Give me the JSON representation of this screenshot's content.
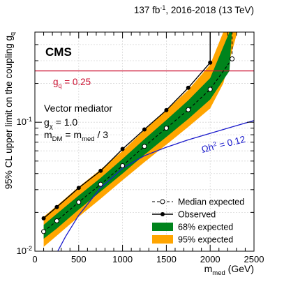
{
  "chart_data": {
    "type": "line",
    "header": {
      "experiment": "CMS",
      "luminosity": "137 fb",
      "luminosity_sup": "-1",
      "run_info": ", 2016-2018 (13 TeV)"
    },
    "model_text": {
      "line1": "Vector mediator",
      "line2_main": "g",
      "line2_sub": "χ",
      "line2_rest": " = 1.0",
      "line3_main": "m",
      "line3_sub1": "DM",
      "line3_mid": " = m",
      "line3_sub2": "med",
      "line3_rest": " / 3"
    },
    "xlabel": {
      "main": "m",
      "sub": "med",
      "rest": " (GeV)"
    },
    "ylabel": {
      "main": "95% CL upper limit on the coupling g",
      "sub": "q"
    },
    "xlim": [
      0,
      2500
    ],
    "ylim": [
      0.01,
      0.5
    ],
    "ylog": true,
    "x_ticks": [
      0,
      500,
      1000,
      1500,
      2000,
      2500
    ],
    "x_tick_labels": [
      "0",
      "500",
      "1000",
      "1500",
      "2000",
      "2500"
    ],
    "y_ticks_major": [
      0.01,
      0.1
    ],
    "y_tick_labels": [
      {
        "base": "10",
        "exp": "-2"
      },
      {
        "base": "10",
        "exp": "-1"
      }
    ],
    "grid": true,
    "colors": {
      "observed": "#000000",
      "expected": "#000000",
      "band68": "#00841c",
      "band95": "#ffa500",
      "gq_line": "#cc1030",
      "relic": "#1a1acc"
    },
    "reference_line": {
      "label_main": "g",
      "label_sub": "q",
      "label_rest": " = 0.25",
      "y": 0.25
    },
    "relic": {
      "label_main": "Ωh",
      "label_sup": "2",
      "label_rest": " = 0.12",
      "x": [
        260,
        350,
        500,
        750,
        1000,
        1250,
        1500,
        1750,
        2000,
        2250,
        2500
      ],
      "y": [
        0.01,
        0.013,
        0.019,
        0.031,
        0.044,
        0.055,
        0.064,
        0.073,
        0.082,
        0.092,
        0.103
      ]
    },
    "series": [
      {
        "name": "Observed",
        "x": [
          100,
          250,
          500,
          750,
          1000,
          1250,
          1500,
          1750,
          2000
        ],
        "y": [
          0.018,
          0.022,
          0.031,
          0.042,
          0.062,
          0.088,
          0.124,
          0.185,
          0.29
        ]
      },
      {
        "name": "Median expected",
        "x": [
          100,
          250,
          500,
          750,
          1000,
          1250,
          1500,
          1750,
          2000,
          2250
        ],
        "y": [
          0.0142,
          0.0172,
          0.024,
          0.033,
          0.046,
          0.065,
          0.09,
          0.125,
          0.18,
          0.31
        ]
      }
    ],
    "band68": {
      "x": [
        100,
        250,
        500,
        750,
        1000,
        1250,
        1500,
        1750,
        2000,
        2220
      ],
      "low": [
        0.0125,
        0.015,
        0.021,
        0.029,
        0.04,
        0.056,
        0.077,
        0.106,
        0.15,
        0.25
      ],
      "high": [
        0.016,
        0.0195,
        0.027,
        0.037,
        0.052,
        0.074,
        0.104,
        0.148,
        0.22,
        0.5
      ]
    },
    "band95": {
      "x": [
        100,
        250,
        500,
        750,
        1000,
        1250,
        1500,
        1750,
        2000,
        2150
      ],
      "low": [
        0.0108,
        0.0132,
        0.0185,
        0.0255,
        0.0355,
        0.049,
        0.067,
        0.092,
        0.128,
        0.2
      ],
      "high": [
        0.0185,
        0.0225,
        0.0315,
        0.043,
        0.06,
        0.087,
        0.124,
        0.178,
        0.28,
        0.5
      ]
    },
    "band_edges": {
      "band68_high_limit_x": 2000,
      "band68_low_limit_x": 2250,
      "band95_high_limit_x": 1950,
      "band95_low_limit_x": 2320
    },
    "legend": {
      "placement": "bottom-right",
      "entries": [
        {
          "label": "Median expected",
          "kind": "dashed-open-marker"
        },
        {
          "label": "Observed",
          "kind": "solid-filled-marker"
        },
        {
          "label": "68% expected",
          "kind": "box68"
        },
        {
          "label": "95% expected",
          "kind": "box95"
        }
      ]
    }
  }
}
